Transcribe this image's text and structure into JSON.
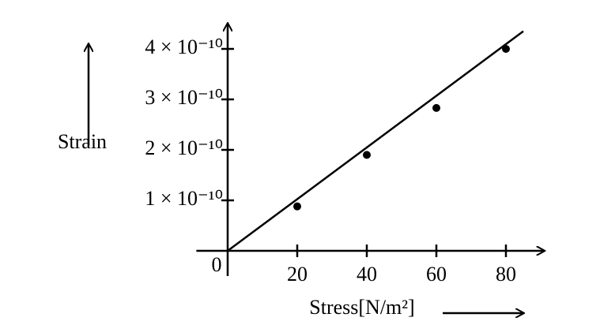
{
  "chart_data": {
    "type": "scatter",
    "x_label": "Stress[N/m²]",
    "y_label": "Strain",
    "x": [
      20,
      40,
      60,
      80
    ],
    "values": [
      8.8e-11,
      1.9e-10,
      2.83e-10,
      4e-10
    ],
    "fit_line": {
      "x": [
        0,
        85
      ],
      "values": [
        0,
        4.35e-10
      ]
    },
    "color": "#000000",
    "xlim": [
      -9,
      91
    ],
    "ylim": [
      -5e-11,
      4.5e-10
    ],
    "xticks": [
      0,
      20,
      40,
      60,
      80
    ],
    "yticks": [
      {
        "value": 1e-10,
        "label": "1 × 10⁻¹⁰"
      },
      {
        "value": 2e-10,
        "label": "2 × 10⁻¹⁰"
      },
      {
        "value": 3e-10,
        "label": "3 × 10⁻¹⁰"
      },
      {
        "value": 4e-10,
        "label": "4 × 10⁻¹⁰"
      }
    ]
  }
}
